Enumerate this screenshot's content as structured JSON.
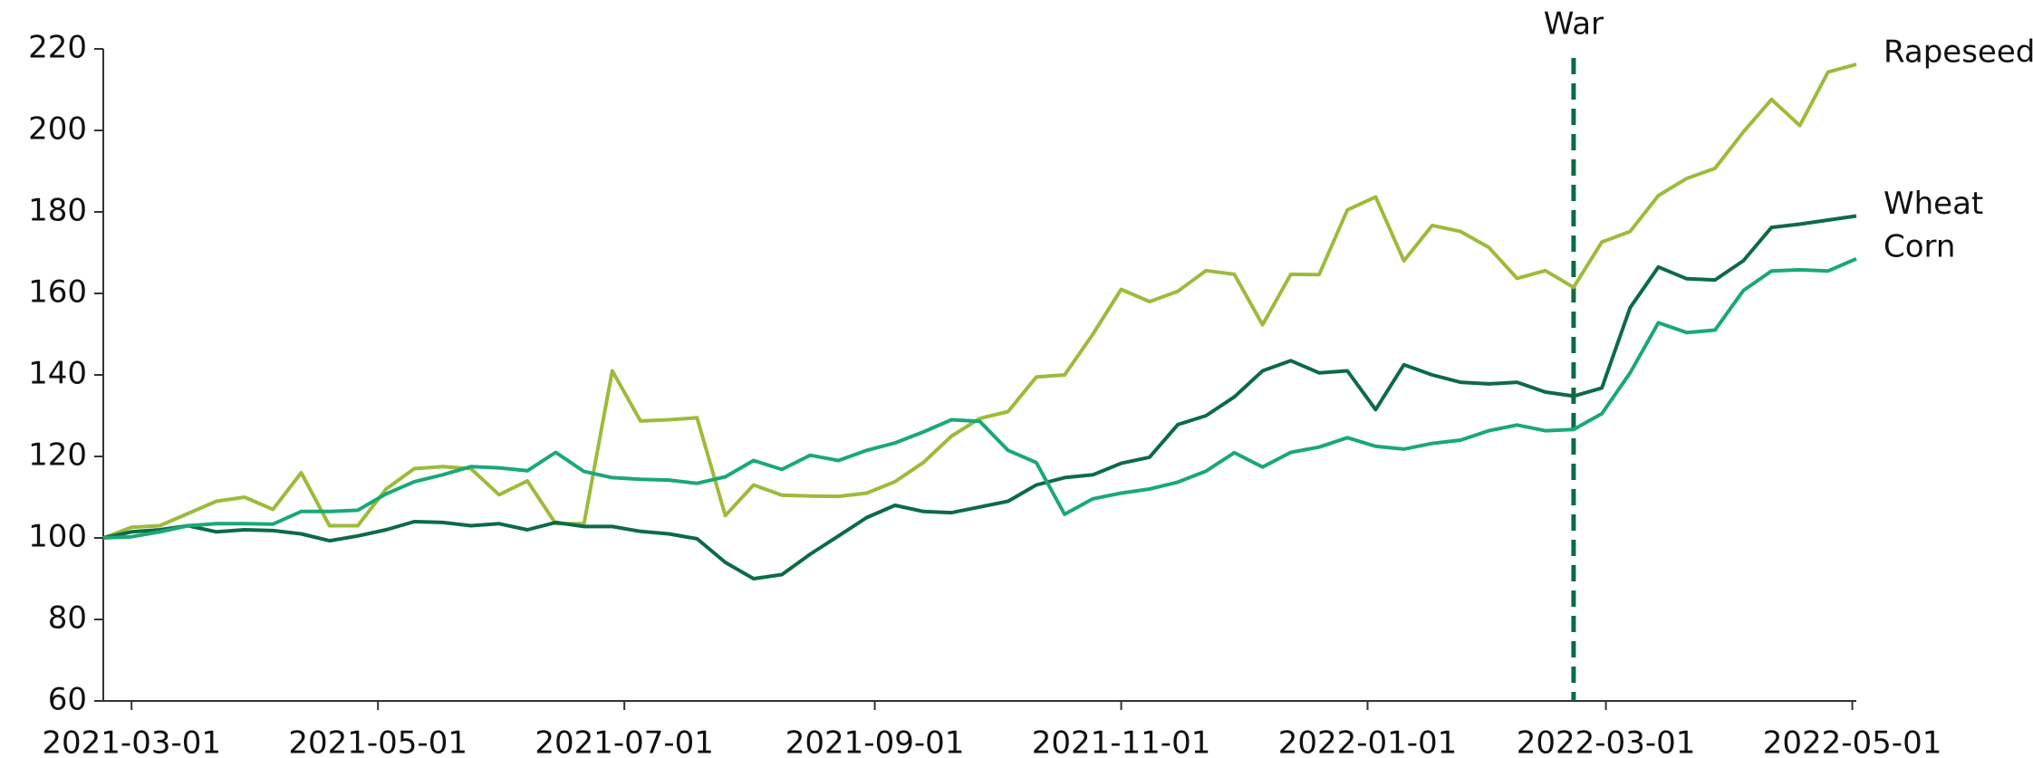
{
  "chart_data": {
    "type": "line",
    "x": [
      "2021-02-22",
      "2021-03-01",
      "2021-03-08",
      "2021-03-15",
      "2021-03-22",
      "2021-03-29",
      "2021-04-05",
      "2021-04-12",
      "2021-04-19",
      "2021-04-26",
      "2021-05-03",
      "2021-05-10",
      "2021-05-17",
      "2021-05-24",
      "2021-05-31",
      "2021-06-07",
      "2021-06-14",
      "2021-06-21",
      "2021-06-28",
      "2021-07-05",
      "2021-07-12",
      "2021-07-19",
      "2021-07-26",
      "2021-08-02",
      "2021-08-09",
      "2021-08-16",
      "2021-08-23",
      "2021-08-30",
      "2021-09-06",
      "2021-09-13",
      "2021-09-20",
      "2021-09-27",
      "2021-10-04",
      "2021-10-11",
      "2021-10-18",
      "2021-10-25",
      "2021-11-01",
      "2021-11-08",
      "2021-11-15",
      "2021-11-22",
      "2021-11-29",
      "2021-12-06",
      "2021-12-13",
      "2021-12-20",
      "2021-12-27",
      "2022-01-03",
      "2022-01-10",
      "2022-01-17",
      "2022-01-24",
      "2022-01-31",
      "2022-02-07",
      "2022-02-14",
      "2022-02-21",
      "2022-02-28",
      "2022-03-07",
      "2022-03-14",
      "2022-03-21",
      "2022-03-28",
      "2022-04-04",
      "2022-04-11",
      "2022-04-18",
      "2022-04-25",
      "2022-05-02"
    ],
    "series": [
      {
        "name": "Rapeseed",
        "color": "#9dbb3a",
        "values": [
          100,
          102.6,
          103,
          106,
          109,
          110,
          107,
          116,
          103,
          103,
          112,
          117,
          117.5,
          117,
          110.6,
          114,
          103.5,
          103.5,
          141,
          128.7,
          129,
          129.5,
          105.5,
          113,
          110.5,
          110.3,
          110.2,
          111,
          113.8,
          118.5,
          125,
          129.3,
          131,
          139.5,
          140,
          150,
          161,
          158,
          160.5,
          165.6,
          164.7,
          152.3,
          164.7,
          164.6,
          180.5,
          183.7,
          168,
          176.7,
          175.2,
          171.3,
          163.7,
          165.6,
          161.5,
          172.6,
          175.2,
          184,
          188.2,
          190.7,
          199.6,
          207.6,
          201.2,
          214.3,
          216.2
        ]
      },
      {
        "name": "Wheat",
        "color": "#0b6b45",
        "values": [
          100,
          101.5,
          102,
          103,
          101.5,
          102,
          101.8,
          101,
          99.3,
          100.5,
          102,
          104,
          103.8,
          103,
          103.5,
          102,
          103.8,
          102.8,
          102.8,
          101.6,
          101,
          99.8,
          94,
          90,
          91,
          96,
          100.5,
          105,
          108,
          106.5,
          106.2,
          107.6,
          109,
          113,
          114.8,
          115.5,
          118.3,
          119.8,
          127.8,
          130,
          134.6,
          141,
          143.5,
          140.5,
          141,
          131.5,
          142.5,
          140,
          138.2,
          137.8,
          138.2,
          135.8,
          134.8,
          136.8,
          156.5,
          166.5,
          163.6,
          163.3,
          168,
          176.2,
          177,
          178,
          179
        ]
      },
      {
        "name": "Corn",
        "color": "#1aa878",
        "values": [
          100,
          100.3,
          101.5,
          103,
          103.5,
          103.5,
          103.4,
          106.5,
          106.5,
          106.8,
          110.8,
          113.8,
          115.5,
          117.5,
          117.2,
          116.5,
          121,
          116.3,
          114.8,
          114.4,
          114.2,
          113.4,
          115,
          119,
          116.8,
          120.3,
          119,
          121.5,
          123.3,
          126,
          129,
          128.6,
          121.5,
          118.5,
          105.8,
          109.6,
          111,
          112,
          113.7,
          116.4,
          120.9,
          117.4,
          121,
          122.3,
          124.6,
          122.5,
          121.8,
          123.2,
          124,
          126.3,
          127.7,
          126.3,
          126.6,
          130.5,
          140.5,
          152.8,
          150.4,
          151,
          160.7,
          165.5,
          165.8,
          165.5,
          168.5
        ]
      }
    ],
    "xlim": [
      "2021-02-22",
      "2022-05-02"
    ],
    "xticks": [
      "2021-03-01",
      "2021-05-01",
      "2021-07-01",
      "2021-09-01",
      "2021-11-01",
      "2022-01-01",
      "2022-03-01",
      "2022-05-01"
    ],
    "ylim": [
      60,
      220
    ],
    "yticks": [
      60,
      80,
      100,
      120,
      140,
      160,
      180,
      200,
      220
    ],
    "annotations": [
      {
        "text": "War",
        "x": "2022-02-21",
        "color": "#0b6b45"
      }
    ]
  }
}
